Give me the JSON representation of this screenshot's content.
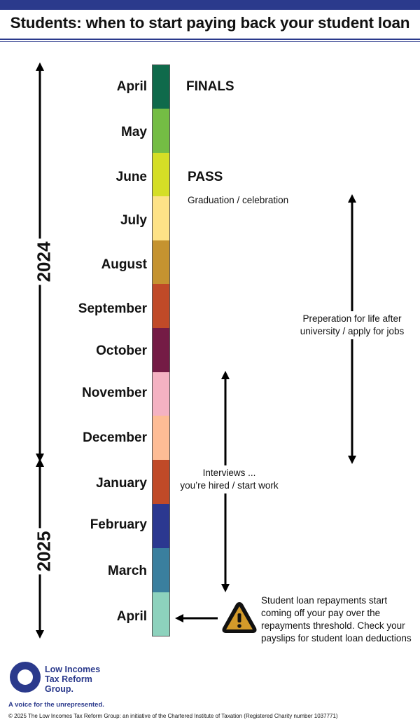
{
  "title": "Students: when to start paying back your student loan",
  "months": [
    {
      "label": "April",
      "color": "#0f6a4b"
    },
    {
      "label": "May",
      "color": "#74bd44"
    },
    {
      "label": "June",
      "color": "#d5de26"
    },
    {
      "label": "July",
      "color": "#fde287"
    },
    {
      "label": "August",
      "color": "#c59330"
    },
    {
      "label": "September",
      "color": "#c04a28"
    },
    {
      "label": "October",
      "color": "#741b45"
    },
    {
      "label": "November",
      "color": "#f4b2c2"
    },
    {
      "label": "December",
      "color": "#fdbc95"
    },
    {
      "label": "January",
      "color": "#c04a28"
    },
    {
      "label": "February",
      "color": "#2b3890"
    },
    {
      "label": "March",
      "color": "#3a7f9e"
    },
    {
      "label": "April",
      "color": "#8dd2bd"
    }
  ],
  "years": [
    "2024",
    "2025"
  ],
  "events": {
    "finals": "FINALS",
    "pass": "PASS",
    "graduation": "Graduation / celebration",
    "preparation": [
      "Preperation for life after",
      "university / apply for jobs"
    ],
    "interviews": [
      "Interviews ...",
      "you’re hired / start work"
    ],
    "repayments": [
      "Student loan repayments start",
      "coming off your pay over the",
      "repayments threshold. Check your",
      "payslips for student loan deductions"
    ]
  },
  "logo": {
    "lines": [
      "Low Incomes",
      "Tax Reform",
      "Group."
    ],
    "tagline": "A voice for the unrepresented.",
    "color": "#2b3a8c"
  },
  "footer": "© 2025 The Low Incomes Tax Reform Group: an initiative of the Chartered Institute of Taxation (Registered Charity number 1037771)",
  "icons": {
    "warning": "warning-icon"
  }
}
